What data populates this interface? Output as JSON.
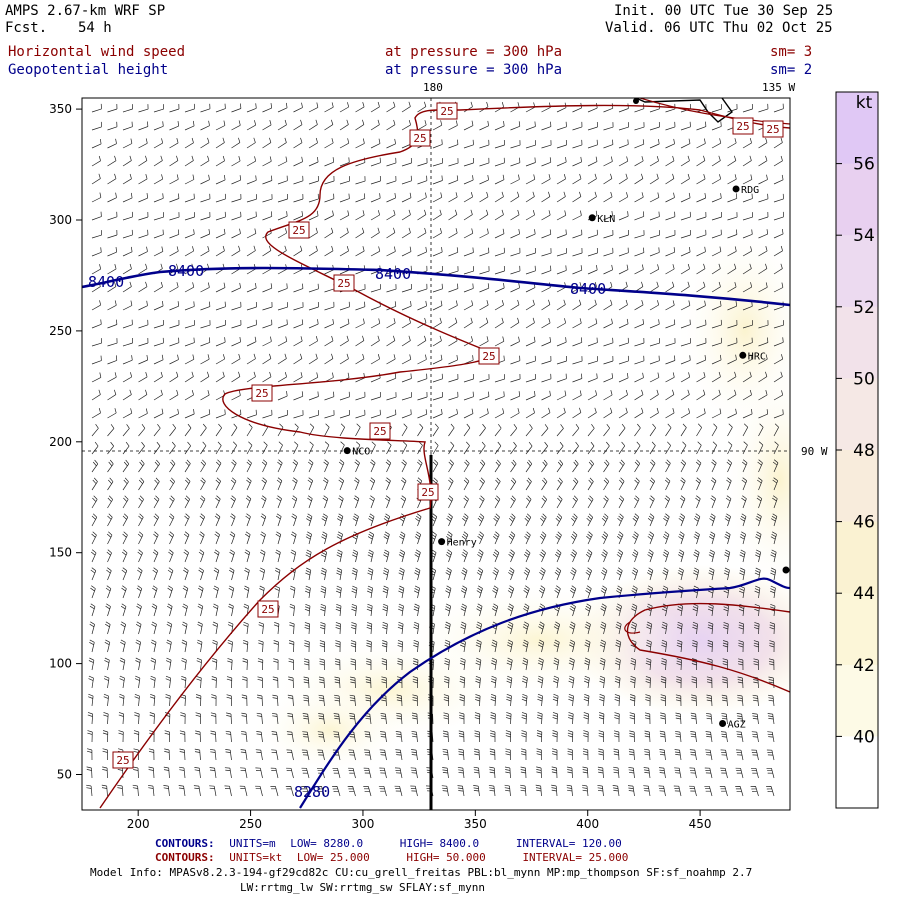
{
  "header": {
    "model": "AMPS 2.67-km WRF SP",
    "fcst_label": "Fcst.",
    "fcst_hours": "54 h",
    "init": "Init. 00 UTC Tue 30 Sep 25",
    "valid": "Valid. 06 UTC Thu 02 Oct 25"
  },
  "fields": [
    {
      "name": "Horizontal wind speed",
      "level": "at pressure =  300 hPa",
      "smooth": "sm= 3",
      "color": "#8b0000"
    },
    {
      "name": "Geopotential height",
      "level": "at pressure =  300 hPa",
      "smooth": "sm= 2",
      "color": "#00008b"
    }
  ],
  "map": {
    "lon_labels": [
      "180",
      "135 W",
      "90 W"
    ],
    "x_ticks": [
      "200",
      "250",
      "300",
      "350",
      "400",
      "450"
    ],
    "y_ticks": [
      "350",
      "300",
      "250",
      "200",
      "150",
      "100",
      "50"
    ],
    "stations": [
      {
        "name": "RDG",
        "x": 466,
        "y": 314
      },
      {
        "name": "KLN",
        "x": 402,
        "y": 301
      },
      {
        "name": "HRC",
        "x": 469,
        "y": 239
      },
      {
        "name": "NCO",
        "x": 293,
        "y": 196
      },
      {
        "name": "Henry",
        "x": 335,
        "y": 155
      },
      {
        "name": "AGZ",
        "x": 460,
        "y": 73
      }
    ],
    "height_contours": [
      {
        "label": "8400",
        "color": "#00008b"
      },
      {
        "label": "8280",
        "color": "#00008b"
      }
    ],
    "speed_contour_label": "25"
  },
  "colorbar": {
    "unit": "kt",
    "levels": [
      "56",
      "54",
      "52",
      "50",
      "48",
      "46",
      "44",
      "42",
      "40"
    ],
    "colors": [
      "#e0c8f5",
      "#e8d0f0",
      "#ecdaf0",
      "#f2e2ea",
      "#f5e8e5",
      "#f8ecdc",
      "#faf2d2",
      "#fcf6d8",
      "#fdfae6",
      "#ffffff"
    ]
  },
  "footer": {
    "contours_label": "CONTOURS:",
    "c1": {
      "units": "UNITS=m",
      "low": "LOW=   8280.0",
      "high": "HIGH=   8400.0",
      "interval": "INTERVAL=    120.00"
    },
    "c2": {
      "units": "UNITS=kt",
      "low": "LOW=   25.000",
      "high": "HIGH=   50.000",
      "interval": "INTERVAL=    25.000"
    },
    "model_info": "Model Info: MPASv8.2.3-194-gf29cd82c CU:cu_grell_freitas PBL:bl_mynn MP:mp_thompson SF:sf_noahmp 2.7",
    "model_info2": "LW:rrtmg_lw SW:rrtmg_sw SFLAY:sf_mynn"
  }
}
